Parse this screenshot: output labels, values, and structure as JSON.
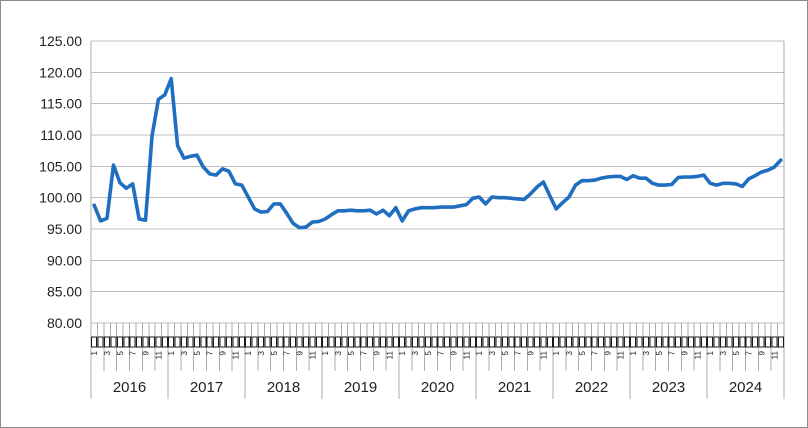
{
  "chart_data": {
    "type": "line",
    "title": "",
    "xlabel": "",
    "ylabel": "",
    "ylim": [
      80,
      125
    ],
    "ytick_step": 5,
    "ytick_labels": [
      "125.00",
      "120.00",
      "115.00",
      "110.00",
      "105.00",
      "100.00",
      "95.00",
      "90.00",
      "85.00",
      "80.00"
    ],
    "grid": "horizontal",
    "legend": "none",
    "x_axis": {
      "years": [
        "2016",
        "2017",
        "2018",
        "2019",
        "2020",
        "2021",
        "2022",
        "2023",
        "2024"
      ],
      "months_per_year": 12,
      "month_tick_labels_shown": [
        "1",
        "3",
        "5",
        "7",
        "9",
        "11"
      ],
      "month_glyph_box_row": true
    },
    "series": [
      {
        "name": "",
        "color": "#1F6EC0",
        "values_by_year": {
          "2016": [
            98.8,
            96.3,
            96.7,
            105.2,
            102.4,
            101.5,
            102.2,
            96.6,
            96.4,
            109.8,
            115.7,
            116.4
          ],
          "2017": [
            119.0,
            108.3,
            106.3,
            106.6,
            106.8,
            104.9,
            103.8,
            103.6,
            104.6,
            104.2,
            102.2,
            102.0
          ],
          "2018": [
            100.1,
            98.2,
            97.7,
            97.8,
            99.0,
            99.0,
            97.5,
            95.9,
            95.2,
            95.3,
            96.1,
            96.2
          ],
          "2019": [
            96.6,
            97.3,
            97.9,
            97.9,
            98.0,
            97.9,
            97.9,
            98.0,
            97.4,
            98.0,
            97.1,
            98.4
          ],
          "2020": [
            96.3,
            97.9,
            98.2,
            98.4,
            98.4,
            98.4,
            98.5,
            98.5,
            98.5,
            98.7,
            98.9,
            99.9
          ],
          "2021": [
            100.1,
            99.0,
            100.1,
            100.0,
            100.0,
            99.9,
            99.8,
            99.7,
            100.6,
            101.7,
            102.5,
            100.3
          ],
          "2022": [
            98.2,
            99.2,
            100.1,
            102.0,
            102.7,
            102.7,
            102.8,
            103.1,
            103.3,
            103.4,
            103.4,
            102.9
          ],
          "2023": [
            103.5,
            103.1,
            103.1,
            102.3,
            102.0,
            102.0,
            102.1,
            103.2,
            103.3,
            103.3,
            103.4,
            103.6
          ],
          "2024": [
            102.3,
            102.0,
            102.3,
            102.3,
            102.2,
            101.8,
            103.0,
            103.5,
            104.1,
            104.4,
            104.9,
            106.0
          ]
        }
      }
    ]
  },
  "colors": {
    "line": "#1F6EC0",
    "gridline": "#BFBFBF",
    "axis_line": "#ABABAB",
    "tick_line": "#ABABAB",
    "box_outline": "#1A1A1A",
    "text": "#1F1F1F",
    "chart_border": "#8C8C8C",
    "background": "#FFFFFF"
  }
}
